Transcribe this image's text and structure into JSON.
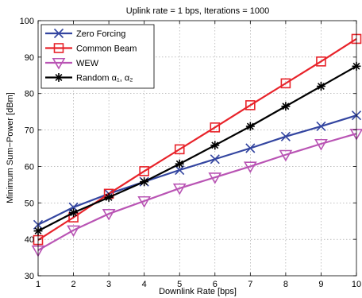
{
  "chart_data": {
    "type": "line",
    "title": "Uplink rate = 1 bps, Iterations = 1000",
    "xlabel": "Downlink Rate [bps]",
    "ylabel": "Minimum Sum−Power [dBm]",
    "xlim": [
      1,
      10
    ],
    "ylim": [
      30,
      100
    ],
    "xticks": [
      1,
      2,
      3,
      4,
      5,
      6,
      7,
      8,
      9,
      10
    ],
    "yticks": [
      30,
      40,
      50,
      60,
      70,
      80,
      90,
      100
    ],
    "grid": true,
    "legend_position": "top-left",
    "x": [
      1,
      2,
      3,
      4,
      5,
      6,
      7,
      8,
      9,
      10
    ],
    "series": [
      {
        "name": "Zero Forcing",
        "color": "#3345a0",
        "marker": "x",
        "values": [
          44.0,
          48.8,
          52.5,
          55.8,
          59.0,
          62.0,
          65.0,
          68.2,
          71.0,
          74.0
        ]
      },
      {
        "name": "Common Beam",
        "color": "#e8232a",
        "marker": "square",
        "values": [
          39.8,
          46.0,
          52.5,
          58.7,
          64.7,
          70.7,
          76.8,
          82.8,
          88.8,
          95.0
        ]
      },
      {
        "name": "WEW",
        "color": "#b954b4",
        "marker": "triangle-down",
        "values": [
          37.0,
          42.5,
          47.0,
          50.5,
          54.0,
          57.0,
          60.0,
          63.2,
          66.2,
          69.0
        ]
      },
      {
        "name": "Random α₁, α₂",
        "color": "#000000",
        "marker": "asterisk",
        "values": [
          42.3,
          47.3,
          51.5,
          55.8,
          60.7,
          65.8,
          71.0,
          76.5,
          82.0,
          87.5
        ]
      }
    ]
  }
}
